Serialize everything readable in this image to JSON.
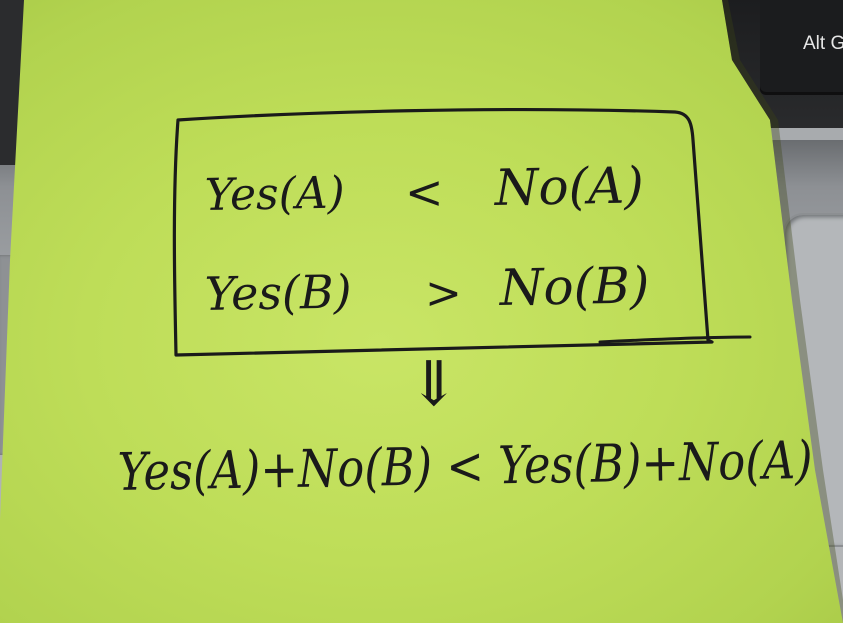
{
  "keyboard": {
    "alt_key_label": "Alt G"
  },
  "note": {
    "box_line_1": {
      "left": "Yes(A)",
      "op": "<",
      "right": "No(A)"
    },
    "box_line_2": {
      "left": "Yes(B)",
      "op": ">",
      "right": "No(B)"
    },
    "arrow": "⇓",
    "conclusion": "Yes(A)+No(B) < Yes(B)+No(A)"
  },
  "colors": {
    "note": "#bedd58",
    "ink": "#1a1a1a",
    "keyboard": "#1b1c1e"
  }
}
